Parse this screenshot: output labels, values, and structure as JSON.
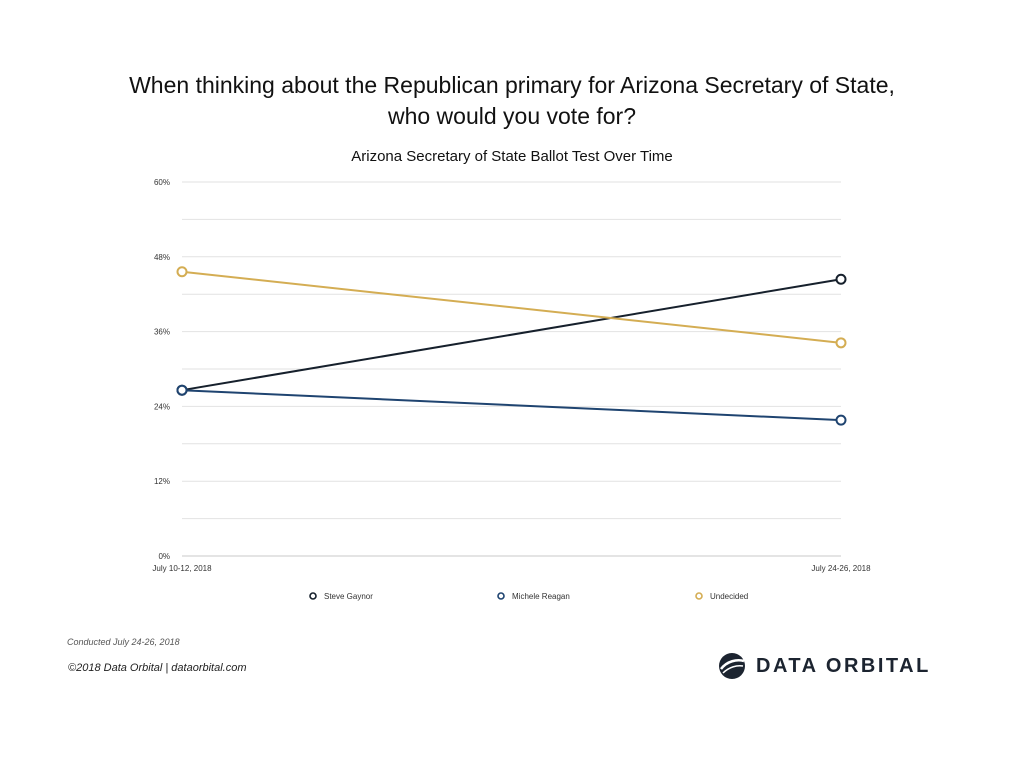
{
  "header": {
    "title_line1": "When thinking about the Republican primary for Arizona Secretary of State,",
    "title_line2": "who would you vote for?"
  },
  "chart_data": {
    "type": "line",
    "title": "Arizona Secretary of State Ballot Test Over Time",
    "x": [
      "July 10-12, 2018",
      "July 24-26, 2018"
    ],
    "ylim": [
      0,
      60
    ],
    "yticks": [
      0,
      12,
      24,
      36,
      48,
      60
    ],
    "ytick_labels": [
      "0%",
      "12%",
      "24%",
      "36%",
      "48%",
      "60%"
    ],
    "grid": true,
    "legend_position": "bottom",
    "series": [
      {
        "name": "Steve Gaynor",
        "values": [
          26.6,
          44.4
        ],
        "color": "#16202c"
      },
      {
        "name": "Michele Reagan",
        "values": [
          26.6,
          21.8
        ],
        "color": "#1f4470"
      },
      {
        "name": "Undecided",
        "values": [
          45.6,
          34.2
        ],
        "color": "#d4ad53"
      }
    ]
  },
  "footer": {
    "conducted": "Conducted July  24-26, 2018",
    "copyright": "©2018 Data Orbital | dataorbital.com",
    "logo_text": "DATA ORBITAL",
    "logo_icon": "orbit-globe-icon"
  }
}
